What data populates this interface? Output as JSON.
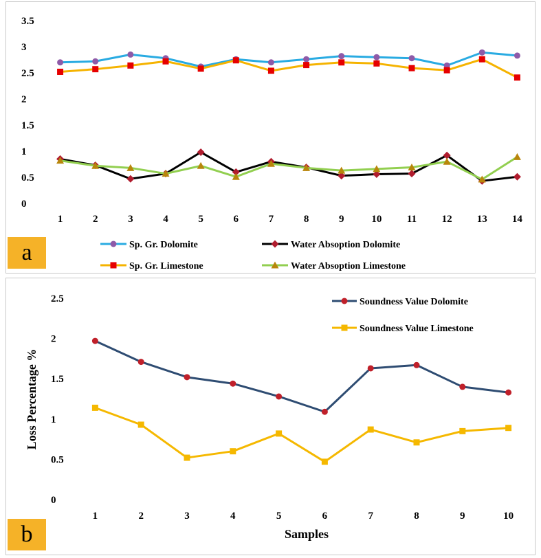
{
  "chart_data": [
    {
      "type": "line",
      "panel_label": "a",
      "categories": [
        "1",
        "2",
        "3",
        "4",
        "5",
        "6",
        "7",
        "8",
        "9",
        "10",
        "11",
        "12",
        "13",
        "14"
      ],
      "ylim": [
        0,
        3.5
      ],
      "yticks": [
        "0",
        "0.5",
        "1",
        "1.5",
        "2",
        "2.5",
        "3",
        "3.5"
      ],
      "ytick_values": [
        0,
        0.5,
        1,
        1.5,
        2,
        2.5,
        3,
        3.5
      ],
      "grid": false,
      "legend_position": "bottom",
      "series": [
        {
          "name": "Sp. Gr. Dolomite",
          "color": "#29abe2",
          "marker": "circle",
          "marker_color": "#8e5aa8",
          "values": [
            2.7,
            2.72,
            2.85,
            2.78,
            2.62,
            2.76,
            2.7,
            2.76,
            2.82,
            2.8,
            2.78,
            2.64,
            2.89,
            2.83
          ]
        },
        {
          "name": "Water Absoption Dolomite",
          "color": "#000000",
          "marker": "diamond",
          "marker_color": "#b01c2e",
          "values": [
            0.85,
            0.73,
            0.47,
            0.57,
            0.98,
            0.6,
            0.8,
            0.69,
            0.53,
            0.56,
            0.57,
            0.92,
            0.43,
            0.51
          ]
        },
        {
          "name": "Sp. Gr. Limestone",
          "color": "#f5b300",
          "marker": "square",
          "marker_color": "#e60000",
          "values": [
            2.52,
            2.57,
            2.64,
            2.72,
            2.58,
            2.74,
            2.54,
            2.65,
            2.7,
            2.68,
            2.59,
            2.55,
            2.76,
            2.41
          ]
        },
        {
          "name": "Water Absoption Limestone",
          "color": "#92cf50",
          "marker": "triangle",
          "marker_color": "#b8860b",
          "values": [
            0.82,
            0.72,
            0.68,
            0.57,
            0.72,
            0.51,
            0.76,
            0.68,
            0.63,
            0.66,
            0.69,
            0.8,
            0.46,
            0.89
          ]
        }
      ]
    },
    {
      "type": "line",
      "panel_label": "b",
      "categories": [
        "1",
        "2",
        "3",
        "4",
        "5",
        "6",
        "7",
        "8",
        "9",
        "10"
      ],
      "xlabel": "Samples",
      "ylabel": "Loss Percentage %",
      "ylim": [
        0,
        2.5
      ],
      "yticks": [
        "0",
        "0.5",
        "1",
        "1.5",
        "2",
        "2.5"
      ],
      "ytick_values": [
        0,
        0.5,
        1,
        1.5,
        2,
        2.5
      ],
      "grid": false,
      "legend_position": "top-right",
      "series": [
        {
          "name": "Soundness Value Dolomite",
          "color": "#2e4c72",
          "marker": "circle",
          "marker_color": "#c0202a",
          "values": [
            1.97,
            1.71,
            1.52,
            1.44,
            1.28,
            1.09,
            1.63,
            1.67,
            1.4,
            1.33
          ]
        },
        {
          "name": "Soundness Value Limestone",
          "color": "#f5b800",
          "marker": "square",
          "marker_color": "#f5b800",
          "values": [
            1.14,
            0.93,
            0.52,
            0.6,
            0.82,
            0.47,
            0.87,
            0.71,
            0.85,
            0.89
          ]
        }
      ]
    }
  ]
}
